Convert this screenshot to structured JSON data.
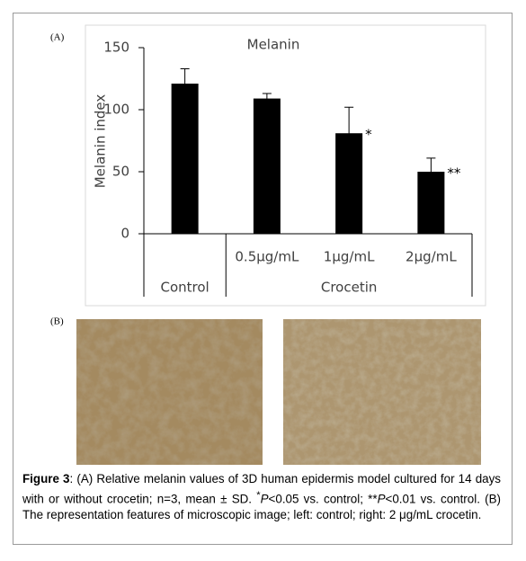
{
  "panel_a_label": "(A)",
  "panel_b_label": "(B)",
  "chart_data": {
    "type": "bar",
    "title": "Melanin",
    "y_label": "Melanin index",
    "categories": [
      "Control",
      "0.5μg/mL",
      "1μg/mL",
      "2μg/mL"
    ],
    "group_label": "Crocetin",
    "values": [
      121,
      109,
      81,
      50
    ],
    "errors": [
      12,
      4,
      21,
      11
    ],
    "color": "#000000",
    "annotations": [
      "*",
      "**"
    ],
    "ylim": [
      0,
      150
    ],
    "yticks": [
      0,
      50,
      100,
      150
    ],
    "grid": false
  },
  "caption": {
    "label": "Figure 3",
    "parts": [
      ": (A) Relative melanin values of 3D human epidermis model cultured for 14 days with or without crocetin; n=3, mean ± SD. ",
      "*",
      "P",
      "<0.05 vs. control; **",
      "P",
      "<0.01 vs. control. (B) The representation features of microscopic image; left: control; right: 2 μg/mL crocetin."
    ]
  }
}
